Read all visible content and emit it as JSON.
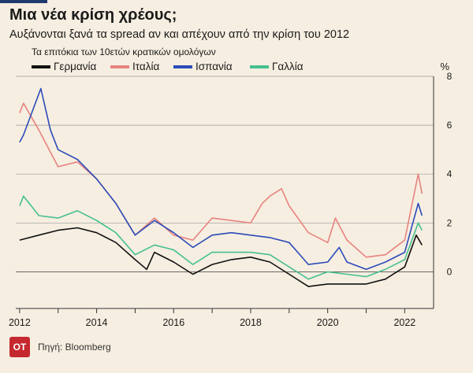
{
  "header": {
    "title": "Μια νέα κρίση χρέους;",
    "subtitle": "Αυξάνονται ξανά τα spread αν και απέχουν από την κρίση του 2012",
    "note": "Τα επιτόκια των 10ετών κρατικών ομολόγων"
  },
  "chart_data": {
    "type": "line",
    "unit_label": "%",
    "ylim": [
      -1.5,
      8
    ],
    "xlim": [
      2011.9,
      2022.75
    ],
    "yticks": [
      0,
      2,
      4,
      6,
      8
    ],
    "xticks": [
      2012,
      2014,
      2016,
      2018,
      2020,
      2022
    ],
    "grid": true,
    "legend_position": "top",
    "series": [
      {
        "name": "Γερμανία",
        "color": "#111111",
        "x": [
          2012,
          2012.5,
          2013,
          2013.5,
          2014,
          2014.5,
          2015,
          2015.3,
          2015.5,
          2016,
          2016.5,
          2017,
          2017.5,
          2018,
          2018.5,
          2019,
          2019.5,
          2020,
          2020.5,
          2021,
          2021.5,
          2022,
          2022.3,
          2022.45
        ],
        "values": [
          1.3,
          1.5,
          1.7,
          1.8,
          1.6,
          1.2,
          0.5,
          0.1,
          0.8,
          0.4,
          -0.1,
          0.3,
          0.5,
          0.6,
          0.4,
          -0.1,
          -0.6,
          -0.5,
          -0.5,
          -0.5,
          -0.3,
          0.2,
          1.5,
          1.1
        ]
      },
      {
        "name": "Ιταλία",
        "color": "#e8837f",
        "x": [
          2012,
          2012.1,
          2012.5,
          2013,
          2013.5,
          2014,
          2014.5,
          2015,
          2015.5,
          2016,
          2016.5,
          2017,
          2017.5,
          2018,
          2018.3,
          2018.5,
          2018.8,
          2019,
          2019.5,
          2020,
          2020.2,
          2020.5,
          2021,
          2021.5,
          2022,
          2022.35,
          2022.45
        ],
        "values": [
          6.5,
          6.9,
          5.8,
          4.3,
          4.5,
          3.8,
          2.8,
          1.5,
          2.2,
          1.5,
          1.3,
          2.2,
          2.1,
          2.0,
          2.8,
          3.1,
          3.4,
          2.7,
          1.6,
          1.2,
          2.2,
          1.3,
          0.6,
          0.7,
          1.3,
          4.0,
          3.2
        ]
      },
      {
        "name": "Ισπανία",
        "color": "#2b4bb8",
        "x": [
          2012,
          2012.1,
          2012.55,
          2012.8,
          2013,
          2013.5,
          2014,
          2014.5,
          2015,
          2015.5,
          2016,
          2016.5,
          2017,
          2017.5,
          2018,
          2018.5,
          2019,
          2019.5,
          2020,
          2020.3,
          2020.5,
          2021,
          2021.5,
          2022,
          2022.35,
          2022.45
        ],
        "values": [
          5.3,
          5.6,
          7.5,
          5.8,
          5.0,
          4.6,
          3.8,
          2.8,
          1.5,
          2.1,
          1.6,
          1.0,
          1.5,
          1.6,
          1.5,
          1.4,
          1.2,
          0.3,
          0.4,
          1.0,
          0.4,
          0.1,
          0.4,
          0.8,
          2.8,
          2.3
        ]
      },
      {
        "name": "Γαλλία",
        "color": "#45c08f",
        "x": [
          2012,
          2012.1,
          2012.5,
          2013,
          2013.5,
          2014,
          2014.5,
          2015,
          2015.5,
          2016,
          2016.5,
          2017,
          2017.5,
          2018,
          2018.5,
          2019,
          2019.5,
          2020,
          2020.5,
          2021,
          2021.5,
          2022,
          2022.35,
          2022.45
        ],
        "values": [
          2.7,
          3.1,
          2.3,
          2.2,
          2.5,
          2.1,
          1.6,
          0.7,
          1.1,
          0.9,
          0.3,
          0.8,
          0.8,
          0.8,
          0.7,
          0.2,
          -0.3,
          0.0,
          -0.1,
          -0.2,
          0.1,
          0.5,
          2.0,
          1.7
        ]
      }
    ]
  },
  "source": {
    "logo_text": "OT",
    "text": "Πηγή: Bloomberg"
  }
}
